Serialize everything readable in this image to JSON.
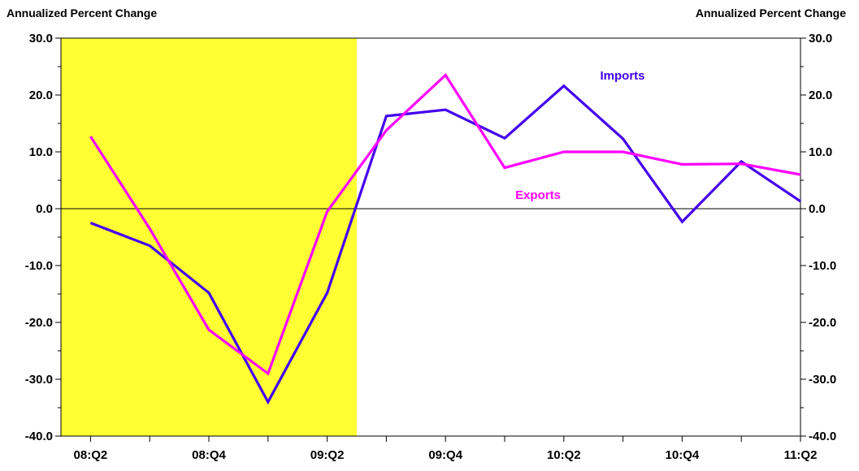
{
  "chart_data": {
    "type": "line",
    "left_axis_title": "Annualized Percent Change",
    "right_axis_title": "Annualized Percent Change",
    "ylim": [
      -40,
      30
    ],
    "y_ticks": [
      "30.0",
      "20.0",
      "10.0",
      "0.0",
      "-10.0",
      "-20.0",
      "-30.0",
      "-40.0"
    ],
    "categories": [
      "08:Q2",
      "08:Q3",
      "08:Q4",
      "09:Q1",
      "09:Q2",
      "09:Q3",
      "09:Q4",
      "10:Q1",
      "10:Q2",
      "10:Q3",
      "10:Q4",
      "11:Q1",
      "11:Q2"
    ],
    "x_tick_labels": [
      "08:Q2",
      "",
      "08:Q4",
      "",
      "09:Q2",
      "",
      "09:Q4",
      "",
      "10:Q2",
      "",
      "10:Q4",
      "",
      "11:Q2"
    ],
    "shaded_region": {
      "from": "08:Q2",
      "to": "09:Q2",
      "color": "#ffff33"
    },
    "series": [
      {
        "name": "Imports",
        "color": "#4400ee",
        "values": [
          -2.5,
          -6.5,
          -14.8,
          -34.0,
          -14.8,
          16.3,
          17.4,
          12.4,
          21.6,
          12.3,
          -2.3,
          8.3,
          1.3
        ]
      },
      {
        "name": "Exports",
        "color": "#ff00ff",
        "values": [
          12.7,
          -3.5,
          -21.3,
          -29.0,
          -0.5,
          13.8,
          23.5,
          7.2,
          10.0,
          10.0,
          7.8,
          7.9,
          6.0
        ]
      }
    ],
    "grid": false
  }
}
